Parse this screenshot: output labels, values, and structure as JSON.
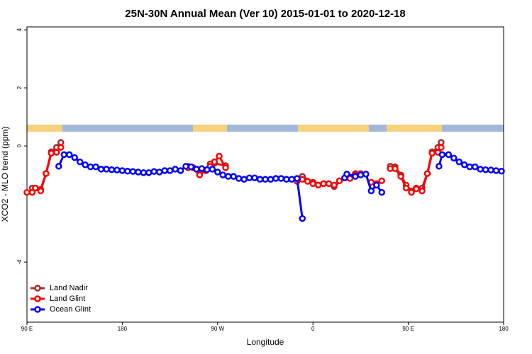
{
  "chart_data": {
    "type": "line",
    "title": "25N-30N Annual Mean (Ver 10)   2015-01-01 to 2020-12-18",
    "xlabel": "Longitude",
    "ylabel": "XCO2 - MLO trend (ppm)",
    "xlim": [
      90,
      540
    ],
    "ylim": [
      -6.07,
      4.1
    ],
    "xticks": [
      {
        "value": 90,
        "label": "90 E"
      },
      {
        "value": 180,
        "label": "180"
      },
      {
        "value": 270,
        "label": "90 W"
      },
      {
        "value": 360,
        "label": "0"
      },
      {
        "value": 450,
        "label": "90 E"
      },
      {
        "value": 540,
        "label": "180"
      }
    ],
    "yticks": [
      -4,
      0,
      2,
      4
    ],
    "legend": "bottom-left",
    "series": [
      {
        "name": "Land Nadir",
        "color": "#a52a2a",
        "x": [
          95,
          98,
          103,
          108,
          113,
          118,
          122,
          null,
          242,
          253,
          263,
          267,
          277.5,
          null,
          350,
          360,
          370,
          380,
          390,
          400,
          null,
          433,
          437.5,
          443,
          448,
          453,
          457.5,
          463,
          468,
          472.5,
          478,
          481
        ],
        "values": [
          -1.45,
          -1.45,
          -1.5,
          -0.95,
          -0.2,
          -0.05,
          0.12,
          null,
          -0.7,
          -0.95,
          -0.62,
          -0.6,
          -0.68,
          null,
          -1.05,
          -1.25,
          -1.3,
          -1.4,
          -1.1,
          -0.95,
          null,
          -0.7,
          -0.72,
          -1.0,
          -1.35,
          -1.55,
          -1.45,
          -1.45,
          -0.95,
          -0.2,
          -0.05,
          0.12
        ]
      },
      {
        "name": "Land Glint",
        "color": "#ff0000",
        "x": [
          90,
          95,
          98,
          103,
          108,
          113,
          118,
          122,
          null,
          242,
          247,
          253,
          259,
          263,
          267,
          271.5,
          277.5,
          null,
          345,
          350,
          355,
          360,
          365,
          370,
          375,
          380,
          385,
          390,
          395,
          400,
          405,
          null,
          415,
          420,
          425,
          null,
          433,
          437.5,
          443,
          448,
          453,
          457.5,
          463,
          468,
          472.5,
          478,
          481
        ],
        "values": [
          -1.6,
          -1.6,
          -1.45,
          -1.55,
          -0.95,
          -0.25,
          -0.22,
          -0.05,
          null,
          -0.75,
          -0.75,
          -1.0,
          -0.85,
          -0.7,
          -0.55,
          -0.35,
          -0.75,
          null,
          -1.22,
          -1.15,
          -1.22,
          -1.3,
          -1.35,
          -1.3,
          -1.3,
          -1.35,
          -1.2,
          -1.1,
          -1.12,
          -1.0,
          -0.95,
          null,
          -1.25,
          -1.3,
          -1.2,
          null,
          -0.78,
          -0.78,
          -1.05,
          -1.45,
          -1.6,
          -1.48,
          -1.55,
          -0.95,
          -0.25,
          -0.22,
          -0.05
        ]
      },
      {
        "name": "Ocean Glint",
        "color": "#0000ff",
        "x": [
          120,
          125,
          130,
          135,
          140,
          145,
          150,
          155,
          160,
          165,
          170,
          175,
          180,
          185,
          190,
          195,
          200,
          205,
          210,
          215,
          220,
          225,
          230,
          235,
          240,
          245,
          250,
          255,
          260,
          265,
          270,
          275,
          280,
          285,
          290,
          295,
          300,
          305,
          310,
          315,
          320,
          325,
          330,
          335,
          340,
          345,
          350,
          null,
          390,
          392,
          400,
          405,
          410,
          415,
          420,
          425,
          null,
          479,
          482,
          488,
          493,
          498,
          503,
          508,
          513,
          518,
          523,
          528,
          533,
          538
        ],
        "values": [
          -0.7,
          -0.3,
          -0.3,
          -0.4,
          -0.55,
          -0.65,
          -0.72,
          -0.72,
          -0.8,
          -0.8,
          -0.82,
          -0.83,
          -0.85,
          -0.87,
          -0.88,
          -0.9,
          -0.92,
          -0.92,
          -0.88,
          -0.9,
          -0.85,
          -0.85,
          -0.8,
          -0.85,
          -0.7,
          -0.72,
          -0.8,
          -0.78,
          -0.82,
          -0.8,
          -0.9,
          -1.0,
          -1.05,
          -1.05,
          -1.12,
          -1.15,
          -1.1,
          -1.1,
          -1.15,
          -1.15,
          -1.15,
          -1.12,
          -1.12,
          -1.15,
          -1.15,
          -1.12,
          -2.5,
          null,
          -1.1,
          -0.97,
          -1.05,
          -1.0,
          -0.97,
          -1.55,
          -1.35,
          -1.6,
          null,
          -0.7,
          -0.3,
          -0.3,
          -0.42,
          -0.55,
          -0.65,
          -0.72,
          -0.72,
          -0.8,
          -0.82,
          -0.83,
          -0.85,
          -0.87
        ]
      }
    ]
  }
}
